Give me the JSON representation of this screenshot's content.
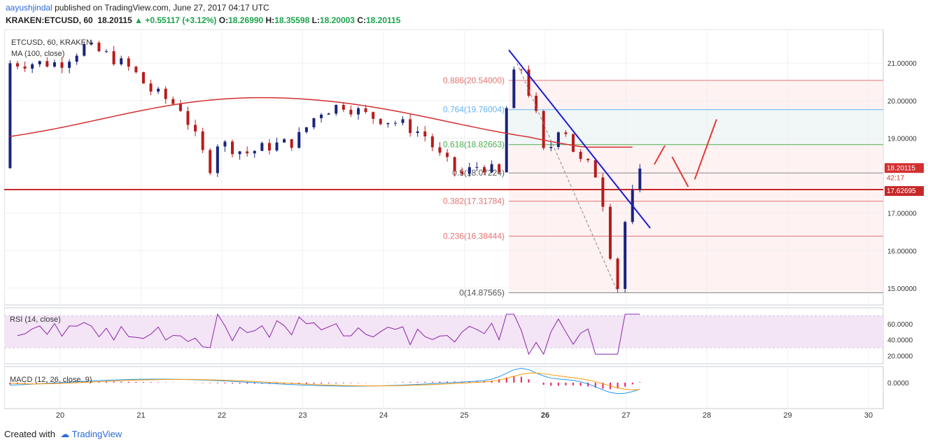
{
  "header": {
    "user": "aayushjindal",
    "published": "published on TradingView.com, June 27, 2017 04:17 UTC",
    "symbol": "KRAKEN:ETCUSD, 60",
    "last": "18.20115",
    "change": "+0.55117 (+3.12%)",
    "o_label": "O:",
    "o": "18.26990",
    "h_label": "H:",
    "h": "18.35598",
    "l_label": "L:",
    "l": "18.20003",
    "c_label": "C:",
    "c": "18.20115"
  },
  "legend": {
    "symbol": "ETCUSD, 60, KRAKEN",
    "ma": "MA (100, close)",
    "rsi": "RSI (14, close)",
    "macd": "MACD (12, 26, close, 9)"
  },
  "footer": {
    "created": "Created with",
    "brand": "TradingView"
  },
  "colors": {
    "up": "#1a237e",
    "down": "#b71c1c",
    "ma": "#d32f2f",
    "trend": "#1a1ad6",
    "fib": "#e57373",
    "rsi": "#8e24aa",
    "macd": "#2196f3",
    "signal": "#ff9800",
    "hist": "#e91e63"
  },
  "chart_data": {
    "type": "candlestick",
    "x_ticks": [
      "20",
      "21",
      "22",
      "23",
      "24",
      "25",
      "26",
      "27",
      "28",
      "29",
      "30"
    ],
    "y_ticks": [
      "21.00000",
      "20.00000",
      "19.00000",
      "17.00000",
      "16.00000",
      "15.00000"
    ],
    "price_range": [
      14.55,
      21.9
    ],
    "price_labels": {
      "last": "18.20115",
      "countdown": "42:17",
      "support": "17.62695"
    },
    "support_level": 17.62695,
    "fib_levels": [
      {
        "label": "0.886(20.54000)",
        "value": 20.54
      },
      {
        "label": "0.764(19.76004)",
        "value": 19.76004
      },
      {
        "label": "0.618(18.82663)",
        "value": 18.82663
      },
      {
        "label": "0.5(18.07224)",
        "value": 18.07224
      },
      {
        "label": "0.382(17.31784)",
        "value": 17.31784
      },
      {
        "label": "0.236(16.38444)",
        "value": 16.38444
      },
      {
        "label": "0(14.87565)",
        "value": 14.87565
      }
    ],
    "rsi_ticks": [
      "60.0000",
      "40.0000",
      "20.0000"
    ],
    "rsi_band": [
      30,
      70
    ],
    "macd_ticks": [
      "0.0000"
    ]
  }
}
